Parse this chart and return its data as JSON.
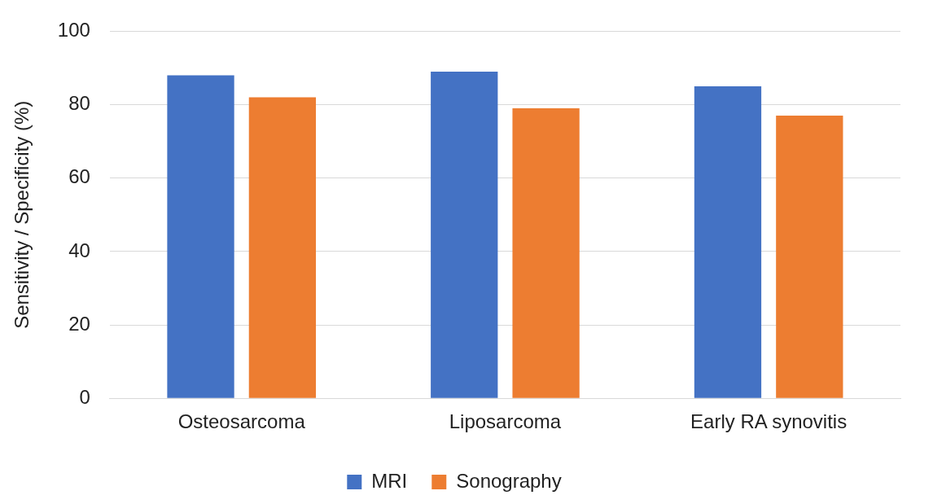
{
  "chart_data": {
    "type": "bar",
    "ylabel": "Sensitivity / Specificity (%)",
    "categories": [
      "Osteosarcoma",
      "Liposarcoma",
      "Early RA synovitis"
    ],
    "series": [
      {
        "name": "MRI",
        "color": "#4472c4",
        "values": [
          88,
          89,
          85
        ]
      },
      {
        "name": "Sonography",
        "color": "#ed7d31",
        "values": [
          82,
          79,
          77
        ]
      }
    ],
    "ylim": [
      0,
      100
    ],
    "yticks": [
      0,
      20,
      40,
      60,
      80,
      100
    ],
    "grid": "y",
    "legend": "bottom"
  }
}
